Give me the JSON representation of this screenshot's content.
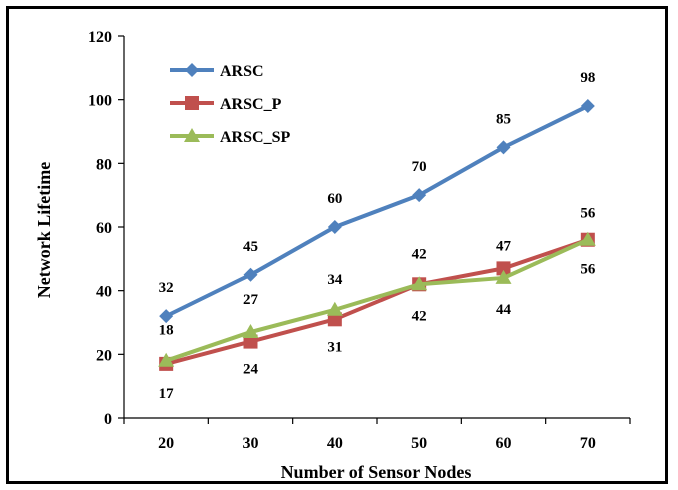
{
  "chart_data": {
    "type": "line",
    "title": "",
    "xlabel": "Number of Sensor Nodes",
    "ylabel": "Network Lifetime",
    "categories": [
      "20",
      "30",
      "40",
      "50",
      "60",
      "70"
    ],
    "ylim": [
      0,
      120
    ],
    "yticks": [
      "0",
      "20",
      "40",
      "60",
      "80",
      "100",
      "120"
    ],
    "grid": false,
    "legend_position": "top-left",
    "series": [
      {
        "name": "ARSC",
        "values": [
          32,
          45,
          60,
          70,
          85,
          98
        ],
        "color": "#4F81BD",
        "marker": "diamond",
        "labels": [
          "32",
          "45",
          "60",
          "70",
          "85",
          "98"
        ]
      },
      {
        "name": "ARSC_P",
        "values": [
          17,
          24,
          31,
          42,
          47,
          56
        ],
        "color": "#C0504D",
        "marker": "square",
        "labels": [
          "17",
          "24",
          "31",
          "42",
          "47",
          "56"
        ]
      },
      {
        "name": "ARSC_SP",
        "values": [
          18,
          27,
          34,
          42,
          44,
          56
        ],
        "color": "#9BBB59",
        "marker": "triangle",
        "labels": [
          "18",
          "27",
          "34",
          "42",
          "44",
          "56"
        ]
      }
    ]
  }
}
